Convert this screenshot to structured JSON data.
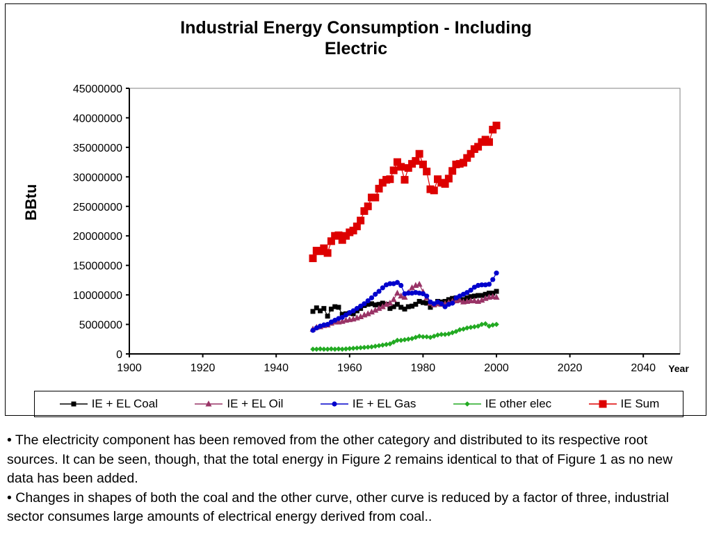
{
  "chart_data": {
    "type": "line",
    "title_line1": "Industrial Energy Consumption - Including",
    "title_line2": "Electric",
    "ylabel": "BBtu",
    "xlabel": "Year",
    "xlim": [
      1900,
      2050
    ],
    "ylim": [
      0,
      45000000
    ],
    "x_ticks": [
      "1900",
      "1920",
      "1940",
      "1960",
      "1980",
      "2000",
      "2020",
      "2040"
    ],
    "y_ticks": [
      "45000000",
      "40000000",
      "35000000",
      "30000000",
      "25000000",
      "20000000",
      "15000000",
      "10000000",
      "5000000",
      "0"
    ],
    "grid": false,
    "legend_position": "bottom",
    "x": [
      1950,
      1951,
      1952,
      1953,
      1954,
      1955,
      1956,
      1957,
      1958,
      1959,
      1960,
      1961,
      1962,
      1963,
      1964,
      1965,
      1966,
      1967,
      1968,
      1969,
      1970,
      1971,
      1972,
      1973,
      1974,
      1975,
      1976,
      1977,
      1978,
      1979,
      1980,
      1981,
      1982,
      1983,
      1984,
      1985,
      1986,
      1987,
      1988,
      1989,
      1990,
      1991,
      1992,
      1993,
      1994,
      1995,
      1996,
      1997,
      1998,
      1999,
      2000
    ],
    "series": [
      {
        "name": "IE + EL Coal",
        "color": "#000000",
        "marker": "square",
        "values": [
          7200000,
          7800000,
          7300000,
          7700000,
          6400000,
          7600000,
          8000000,
          7900000,
          6700000,
          6800000,
          6900000,
          6800000,
          7300000,
          7700000,
          8200000,
          8400000,
          8500000,
          8300000,
          8400000,
          8600000,
          8400000,
          7700000,
          8000000,
          8400000,
          7900000,
          7600000,
          8000000,
          8100000,
          8400000,
          8900000,
          8700000,
          8600000,
          7900000,
          8300000,
          8900000,
          8800000,
          8900000,
          9200000,
          9400000,
          9500000,
          9400000,
          9200000,
          9500000,
          9700000,
          9800000,
          9900000,
          9900000,
          10100000,
          10300000,
          10300000,
          10600000
        ]
      },
      {
        "name": "IE + EL Oil",
        "color": "#993366",
        "marker": "triangle",
        "values": [
          4200000,
          4500000,
          4600000,
          4800000,
          4900000,
          5200000,
          5400000,
          5400000,
          5500000,
          5700000,
          5800000,
          5900000,
          6100000,
          6300000,
          6600000,
          6800000,
          7100000,
          7400000,
          7700000,
          8000000,
          8400000,
          8600000,
          9200000,
          10300000,
          9800000,
          9600000,
          10400000,
          11200000,
          11600000,
          11800000,
          10500000,
          9500000,
          8600000,
          8300000,
          8500000,
          8400000,
          8500000,
          8700000,
          8900000,
          9000000,
          9100000,
          8800000,
          8900000,
          9000000,
          9000000,
          8900000,
          9100000,
          9400000,
          9600000,
          9700000,
          9600000
        ]
      },
      {
        "name": "IE + EL Gas",
        "color": "#0000cc",
        "marker": "circle",
        "values": [
          4000000,
          4400000,
          4700000,
          4900000,
          5000000,
          5400000,
          5700000,
          6000000,
          6200000,
          6600000,
          7000000,
          7300000,
          7700000,
          8100000,
          8500000,
          9000000,
          9500000,
          10100000,
          10600000,
          11200000,
          11700000,
          11900000,
          11900000,
          12100000,
          11600000,
          10200000,
          10300000,
          10300000,
          10400000,
          10300000,
          10200000,
          9800000,
          8800000,
          8500000,
          8800000,
          8500000,
          8000000,
          8400000,
          8600000,
          9500000,
          9800000,
          10100000,
          10400000,
          10800000,
          11300000,
          11600000,
          11700000,
          11700000,
          11800000,
          12600000,
          13700000
        ]
      },
      {
        "name": "IE other elec",
        "color": "#22aa22",
        "marker": "diamond",
        "values": [
          800000,
          800000,
          850000,
          800000,
          800000,
          850000,
          800000,
          850000,
          800000,
          850000,
          900000,
          950000,
          1000000,
          1050000,
          1100000,
          1150000,
          1200000,
          1300000,
          1400000,
          1500000,
          1600000,
          1700000,
          2000000,
          2300000,
          2300000,
          2400000,
          2500000,
          2600000,
          2800000,
          3000000,
          2900000,
          2900000,
          2800000,
          3000000,
          3200000,
          3300000,
          3300000,
          3400000,
          3600000,
          3800000,
          4100000,
          4200000,
          4400000,
          4500000,
          4600000,
          4700000,
          5000000,
          5100000,
          4700000,
          4900000,
          5000000
        ]
      },
      {
        "name": "IE Sum",
        "color": "#dd0000",
        "marker": "square-large",
        "values": [
          16200000,
          17500000,
          17400000,
          17900000,
          17100000,
          19100000,
          20000000,
          20100000,
          19300000,
          20000000,
          20600000,
          20900000,
          21600000,
          22600000,
          24200000,
          25000000,
          26500000,
          26500000,
          28000000,
          29000000,
          29500000,
          29600000,
          31100000,
          32500000,
          31700000,
          29500000,
          31500000,
          32200000,
          32700000,
          33900000,
          32100000,
          30900000,
          27900000,
          27700000,
          29600000,
          29000000,
          28800000,
          29700000,
          31000000,
          32100000,
          32200000,
          32400000,
          33200000,
          33900000,
          34700000,
          35100000,
          35900000,
          36300000,
          35900000,
          38000000,
          38700000
        ]
      }
    ]
  },
  "notes": {
    "bullet1": "• The electricity component has been removed from the other category and distributed to its respective root sources.  It can be seen, though, that the total energy in Figure 2 remains identical to that of Figure 1 as no new data has been added.",
    "bullet2": "• Changes in shapes of both the coal and the other curve, other curve is reduced by a factor of three, industrial sector consumes large amounts of electrical energy derived from coal.."
  }
}
